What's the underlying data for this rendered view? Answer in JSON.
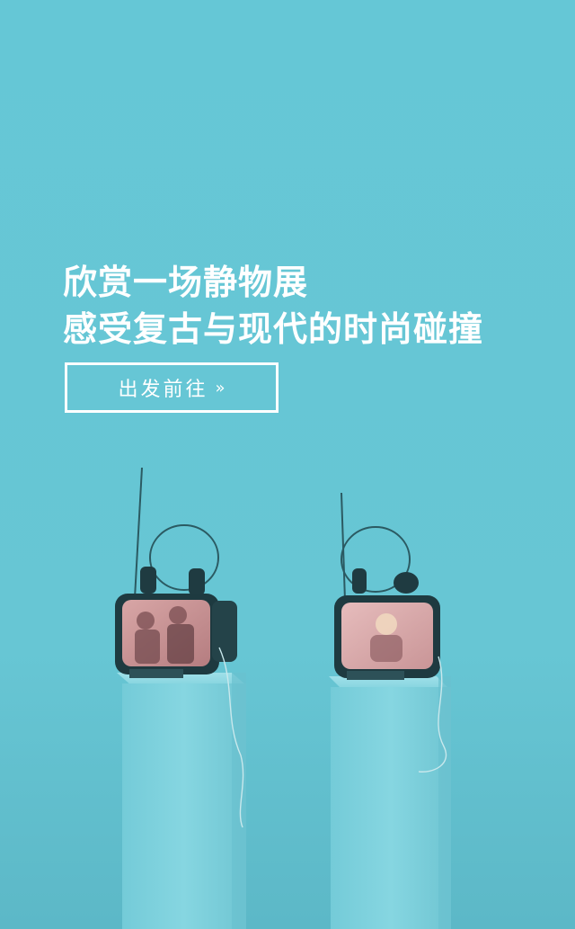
{
  "headline": {
    "line1": "欣赏一场静物展",
    "line2": "感受复古与现代的时尚碰撞"
  },
  "cta": {
    "label": "出发前往",
    "arrow": "»"
  },
  "colors": {
    "background": "#66c8d6",
    "pedestal": "#7dd2de",
    "text": "#ffffff"
  }
}
